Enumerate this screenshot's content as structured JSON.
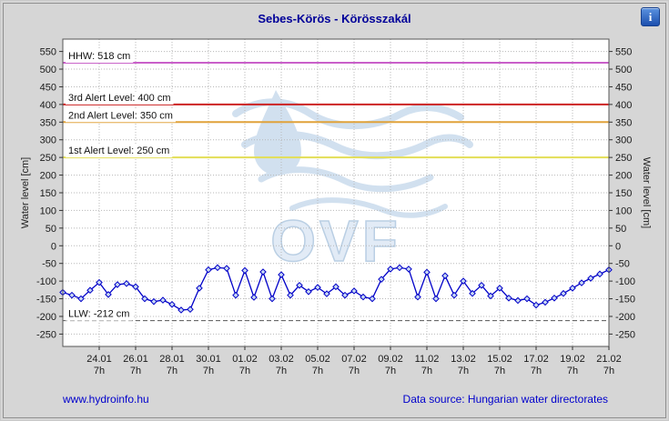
{
  "info_icon": {
    "glyph": "i"
  },
  "chart_data": {
    "type": "line",
    "title": "Sebes-Körös - Körösszakál",
    "ylabel_left": "Water level [cm]",
    "ylabel_right": "Water level [cm]",
    "ylim": [
      -285,
      585
    ],
    "ytick_min": -250,
    "ytick_max": 550,
    "ytick_step": 50,
    "grid_color": "#b8b8b8",
    "plot_bg": "#ffffff",
    "watermark_text": "OVF",
    "watermark_color": "#c6d9ec",
    "x_tick_sub": "7h",
    "x_tick_labels": [
      "24.01",
      "26.01",
      "28.01",
      "30.01",
      "01.02",
      "03.02",
      "05.02",
      "07.02",
      "09.02",
      "11.02",
      "13.02",
      "15.02",
      "17.02",
      "19.02",
      "21.02"
    ],
    "x_tick_indices": [
      4,
      8,
      12,
      16,
      20,
      24,
      28,
      32,
      36,
      40,
      44,
      48,
      52,
      56,
      60
    ],
    "series": [
      {
        "name": "Water level",
        "color": "#0000c8",
        "marker_fill": "#c8d8f2",
        "values": [
          -132,
          -140,
          -150,
          -126,
          -104,
          -138,
          -110,
          -107,
          -116,
          -150,
          -158,
          -154,
          -166,
          -182,
          -180,
          -120,
          -68,
          -62,
          -64,
          -140,
          -70,
          -146,
          -74,
          -150,
          -82,
          -140,
          -112,
          -130,
          -118,
          -136,
          -116,
          -140,
          -128,
          -145,
          -150,
          -95,
          -66,
          -62,
          -66,
          -145,
          -75,
          -150,
          -85,
          -140,
          -100,
          -135,
          -112,
          -142,
          -120,
          -148,
          -155,
          -150,
          -168,
          -160,
          -148,
          -135,
          -120,
          -105,
          -92,
          -80,
          -68
        ]
      }
    ],
    "reference_lines": [
      {
        "label": "HHW: 518 cm",
        "value": 518,
        "color": "#c95fc9",
        "style": "solid"
      },
      {
        "label": "3rd Alert Level: 400 cm",
        "value": 400,
        "color": "#cc2222",
        "style": "solid"
      },
      {
        "label": "2nd Alert Level: 350 cm",
        "value": 350,
        "color": "#e0a23a",
        "style": "solid"
      },
      {
        "label": "1st Alert Level: 250 cm",
        "value": 250,
        "color": "#e3de55",
        "style": "solid"
      },
      {
        "label": "LLW: -212 cm",
        "value": -212,
        "color": "#555555",
        "style": "dashed"
      }
    ]
  },
  "footer": {
    "link": "www.hydroinfo.hu",
    "source": "Data source: Hungarian water directorates"
  }
}
